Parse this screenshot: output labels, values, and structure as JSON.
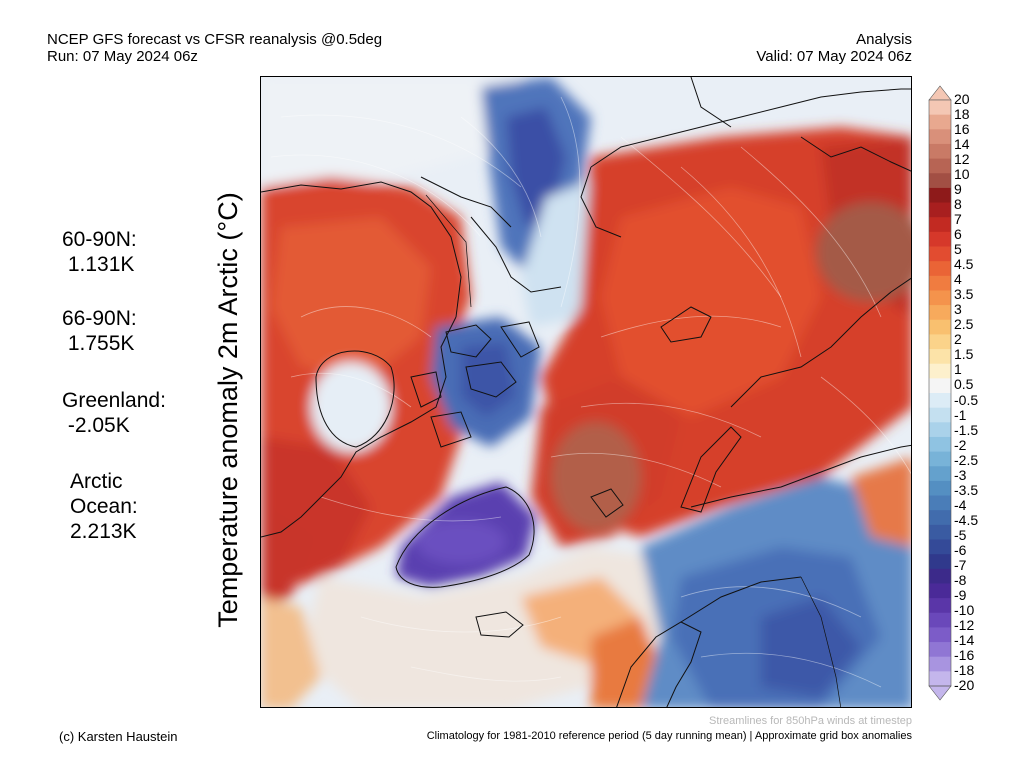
{
  "header": {
    "title_line1": "NCEP GFS forecast vs CFSR reanalysis @0.5deg",
    "title_line2": "Run: 07 May 2024 06z",
    "right_line1": "Analysis",
    "right_line2": "Valid: 07 May 2024 06z"
  },
  "variable_label": "Temperature anomaly 2m Arctic (°C)",
  "stats": [
    {
      "lines": [
        "60-90N:",
        " 1.131K"
      ]
    },
    {
      "lines": [
        "66-90N:",
        " 1.755K"
      ]
    },
    {
      "lines": [
        "Greenland:",
        " -2.05K"
      ]
    },
    {
      "lines": [
        "Arctic",
        "Ocean:",
        "2.213K"
      ]
    }
  ],
  "colorbar": {
    "labels": [
      "20",
      "18",
      "16",
      "14",
      "12",
      "10",
      "9",
      "8",
      "7",
      "6",
      "5",
      "4.5",
      "4",
      "3.5",
      "3",
      "2.5",
      "2",
      "1.5",
      "1",
      "0.5",
      "-0.5",
      "-1",
      "-1.5",
      "-2",
      "-2.5",
      "-3",
      "-3.5",
      "-4",
      "-4.5",
      "-5",
      "-6",
      "-7",
      "-8",
      "-9",
      "-10",
      "-12",
      "-14",
      "-16",
      "-18",
      "-20"
    ],
    "colors": [
      "#f4c7b4",
      "#e8a88f",
      "#d9907a",
      "#c97a66",
      "#b76454",
      "#a24f44",
      "#8e1a1a",
      "#a81f1f",
      "#c22a22",
      "#d6382a",
      "#e24c30",
      "#ea6436",
      "#f07c40",
      "#f4934c",
      "#f7aa5c",
      "#f9c06f",
      "#fbd38a",
      "#fce3a8",
      "#fdf0cc",
      "#f5f5f5",
      "#dcecf6",
      "#c4e0f0",
      "#aad2ea",
      "#8fc3e2",
      "#78b3d8",
      "#64a1cd",
      "#548fc2",
      "#4a7db8",
      "#416cad",
      "#3a5ba2",
      "#344a98",
      "#30398c",
      "#3c2a8a",
      "#4a2a98",
      "#5a36a8",
      "#6a48ba",
      "#7c5cc8",
      "#9076d4",
      "#a894e0",
      "#c4b6ec"
    ]
  },
  "footer": {
    "streamlines_note": "Streamlines for 850hPa winds at timestep",
    "climatology_note": "Climatology for 1981-2010 reference period (5 day running mean) | Approximate grid box anomalies",
    "copyright": "(c) Karsten Haustein"
  }
}
